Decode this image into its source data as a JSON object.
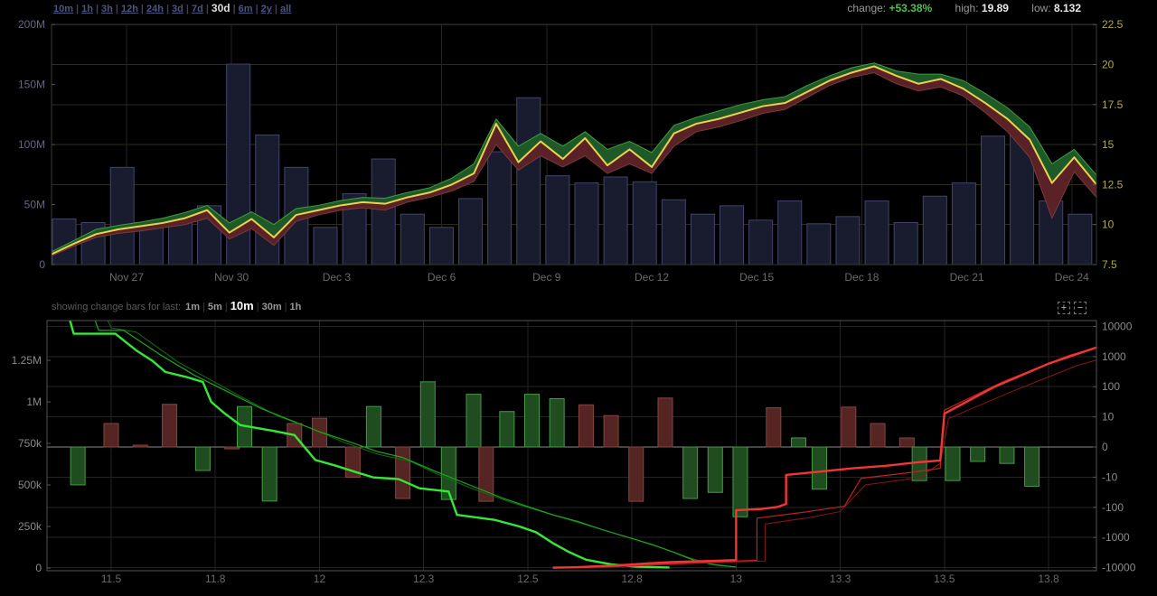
{
  "toolbar": {
    "ranges": [
      "10m",
      "1h",
      "3h",
      "12h",
      "24h",
      "3d",
      "7d",
      "30d",
      "6m",
      "2y",
      "all"
    ],
    "selected_range": "30d",
    "stats": {
      "change_label": "change:",
      "change_value": "+53.38%",
      "high_label": "high:",
      "high_value": "19.89",
      "low_label": "low:",
      "low_value": "8.132"
    }
  },
  "subbar": {
    "label": "showing change bars for last:",
    "options": [
      "1m",
      "5m",
      "10m",
      "30m",
      "1h"
    ],
    "selected": "10m",
    "zoom_in": "+",
    "zoom_out": "−"
  },
  "colors": {
    "background": "#000000",
    "price_line": "#e8d24e",
    "band_green": "#1e5a27",
    "band_green_edge": "#3f9c3f",
    "band_red": "#5a2126",
    "band_red_edge": "#7a3a3a",
    "volume_bar_fill": "#191b2f",
    "volume_bar_stroke": "#414569",
    "link": "#4d5480",
    "change_green": "#4ec04e",
    "axis_left_top": "#65657f",
    "axis_right_top": "#b2aa47",
    "axis_gray": "#8a8a8a",
    "date_label": "#6a6a6a",
    "grid_vertical": "#242424",
    "grid_horizontal_top": "#2e2d1a",
    "grid_bottom": "#232323",
    "zero_line": "#8a8a8a",
    "border_top_chart": "#383838",
    "border_bottom_chart": "#555555",
    "depth_bid": "#35e835",
    "depth_bid_thin": "#1fa51f",
    "depth_bid_thin2": "#0f7010",
    "depth_ask": "#f23535",
    "depth_ask_thin": "#c22020",
    "depth_ask_thin2": "#8a1616",
    "bar_bid_fill": "#1f4d20",
    "bar_bid_stroke": "#459a45",
    "bar_ask_fill": "#542522",
    "bar_ask_stroke": "#8a4440"
  },
  "chart_data": [
    {
      "type": "line",
      "title": "price with high-low band and daily volume bars",
      "x_tick_labels": [
        "Nov 27",
        "Nov 30",
        "Dec 3",
        "Dec 6",
        "Dec 9",
        "Dec 12",
        "Dec 15",
        "Dec 18",
        "Dec 21",
        "Dec 24"
      ],
      "left_axis": {
        "title": "volume",
        "tick_labels": [
          "0",
          "50M",
          "100M",
          "150M",
          "200M"
        ],
        "range": [
          0,
          200000000
        ]
      },
      "right_axis": {
        "title": "price",
        "tick_labels": [
          "7.5",
          "10",
          "12.5",
          "15",
          "17.5",
          "20",
          "22.5"
        ],
        "range": [
          7.5,
          22.5
        ]
      },
      "legend_position": "none",
      "grid": true,
      "stats": {
        "change_pct": 53.38,
        "high": 19.89,
        "low": 8.132
      },
      "volume_bars_millions": [
        38,
        35,
        81,
        34,
        36,
        49,
        167,
        108,
        81,
        31,
        59,
        88,
        42,
        31,
        55,
        94,
        139,
        74,
        68,
        73,
        69,
        54,
        42,
        49,
        37,
        53,
        34,
        40,
        53,
        35,
        57,
        68,
        107,
        109,
        53,
        42
      ],
      "price_line": [
        8.15,
        8.8,
        9.4,
        9.7,
        9.9,
        10.1,
        10.4,
        10.9,
        9.5,
        10.35,
        9.2,
        10.6,
        10.9,
        11.2,
        11.4,
        11.3,
        11.7,
        12.0,
        12.5,
        13.2,
        16.3,
        13.9,
        15.2,
        14.1,
        15.4,
        13.7,
        14.7,
        13.6,
        15.7,
        16.3,
        16.6,
        17.0,
        17.4,
        17.6,
        18.3,
        19.0,
        19.5,
        19.89,
        19.3,
        18.8,
        19.1,
        18.5,
        17.6,
        16.6,
        15.3,
        12.6,
        14.2,
        12.5
      ],
      "band_high": [
        8.3,
        9.0,
        9.7,
        9.95,
        10.15,
        10.4,
        10.75,
        11.2,
        10.1,
        10.8,
        10.0,
        11.0,
        11.2,
        11.5,
        11.7,
        11.65,
        12.0,
        12.3,
        12.9,
        13.8,
        16.6,
        14.9,
        15.7,
        14.9,
        15.8,
        14.7,
        15.2,
        14.5,
        16.2,
        16.7,
        17.1,
        17.5,
        17.8,
        18.0,
        18.7,
        19.3,
        19.8,
        20.1,
        19.6,
        19.4,
        19.4,
        19.0,
        18.2,
        17.3,
        16.1,
        13.8,
        14.7,
        13.1
      ],
      "band_low": [
        8.05,
        8.65,
        9.2,
        9.45,
        9.6,
        9.8,
        10.0,
        10.4,
        9.1,
        9.75,
        8.7,
        10.2,
        10.6,
        10.9,
        11.05,
        10.9,
        11.4,
        11.7,
        12.1,
        12.7,
        15.0,
        13.4,
        14.3,
        13.6,
        14.3,
        13.2,
        13.8,
        13.2,
        14.9,
        15.8,
        16.1,
        16.5,
        16.95,
        17.2,
        17.95,
        18.7,
        19.2,
        19.49,
        18.8,
        18.35,
        18.6,
        18.05,
        17.0,
        15.8,
        14.2,
        10.4,
        13.3,
        11.7
      ]
    },
    {
      "type": "bar",
      "title": "order book depth lines with bid/ask change bars",
      "x_tick_labels": [
        "11.5",
        "11.8",
        "12",
        "12.3",
        "12.5",
        "12.8",
        "13",
        "13.3",
        "13.5",
        "13.8"
      ],
      "x_tick_values": [
        11.5,
        11.75,
        12.0,
        12.25,
        12.5,
        12.75,
        13.0,
        13.25,
        13.5,
        13.75
      ],
      "x_range": [
        11.33,
        13.86
      ],
      "left_axis": {
        "title": "cumulative depth",
        "tick_labels": [
          "0",
          "250k",
          "500k",
          "750k",
          "1M",
          "1.25M"
        ],
        "range": [
          0,
          1500000
        ]
      },
      "right_axis": {
        "title": "change",
        "scale": "symlog",
        "tick_labels": [
          "10000",
          "1000",
          "100",
          "10",
          "0",
          "-10",
          "-100",
          "-1000",
          "-10000"
        ],
        "tick_values": [
          10000,
          1000,
          100,
          10,
          0,
          -10,
          -100,
          -1000,
          -10000
        ]
      },
      "grid": true,
      "change_bars": [
        {
          "price": 11.42,
          "value": -18,
          "side": "bid"
        },
        {
          "price": 11.5,
          "value": 6,
          "side": "ask"
        },
        {
          "price": 11.57,
          "value": 1,
          "side": "ask"
        },
        {
          "price": 11.64,
          "value": 26,
          "side": "ask"
        },
        {
          "price": 11.72,
          "value": -6,
          "side": "bid"
        },
        {
          "price": 11.79,
          "value": -1,
          "side": "ask"
        },
        {
          "price": 11.82,
          "value": 22,
          "side": "bid"
        },
        {
          "price": 11.88,
          "value": -62,
          "side": "bid"
        },
        {
          "price": 11.94,
          "value": 6,
          "side": "ask"
        },
        {
          "price": 12.0,
          "value": 9,
          "side": "ask"
        },
        {
          "price": 12.08,
          "value": -10,
          "side": "ask"
        },
        {
          "price": 12.13,
          "value": 22,
          "side": "bid"
        },
        {
          "price": 12.2,
          "value": -51,
          "side": "ask"
        },
        {
          "price": 12.26,
          "value": 145,
          "side": "bid"
        },
        {
          "price": 12.31,
          "value": -55,
          "side": "bid"
        },
        {
          "price": 12.37,
          "value": 56,
          "side": "bid"
        },
        {
          "price": 12.4,
          "value": -63,
          "side": "ask"
        },
        {
          "price": 12.45,
          "value": 15,
          "side": "bid"
        },
        {
          "price": 12.51,
          "value": 56,
          "side": "bid"
        },
        {
          "price": 12.57,
          "value": 40,
          "side": "bid"
        },
        {
          "price": 12.64,
          "value": 25,
          "side": "ask"
        },
        {
          "price": 12.7,
          "value": 11,
          "side": "ask"
        },
        {
          "price": 12.76,
          "value": -63,
          "side": "ask"
        },
        {
          "price": 12.83,
          "value": 42,
          "side": "ask"
        },
        {
          "price": 12.89,
          "value": -51,
          "side": "bid"
        },
        {
          "price": 12.95,
          "value": -32,
          "side": "bid"
        },
        {
          "price": 13.01,
          "value": -205,
          "side": "bid"
        },
        {
          "price": 13.09,
          "value": 20,
          "side": "ask"
        },
        {
          "price": 13.15,
          "value": 2,
          "side": "bid"
        },
        {
          "price": 13.2,
          "value": -25,
          "side": "bid"
        },
        {
          "price": 13.27,
          "value": 21,
          "side": "ask"
        },
        {
          "price": 13.34,
          "value": 6,
          "side": "ask"
        },
        {
          "price": 13.41,
          "value": 2,
          "side": "ask"
        },
        {
          "price": 13.44,
          "value": -13,
          "side": "bid"
        },
        {
          "price": 13.52,
          "value": -13,
          "side": "bid"
        },
        {
          "price": 13.58,
          "value": -3,
          "side": "bid"
        },
        {
          "price": 13.65,
          "value": -3.5,
          "side": "bid"
        },
        {
          "price": 13.71,
          "value": -20,
          "side": "bid"
        }
      ],
      "depth_lines": {
        "bid_main_k": [
          [
            11.4,
            1500
          ],
          [
            11.41,
            1410
          ],
          [
            11.51,
            1410
          ],
          [
            11.56,
            1310
          ],
          [
            11.6,
            1245
          ],
          [
            11.63,
            1180
          ],
          [
            11.68,
            1150
          ],
          [
            11.72,
            1120
          ],
          [
            11.74,
            1000
          ],
          [
            11.77,
            935
          ],
          [
            11.81,
            860
          ],
          [
            11.89,
            825
          ],
          [
            11.94,
            800
          ],
          [
            11.99,
            650
          ],
          [
            12.04,
            615
          ],
          [
            12.09,
            575
          ],
          [
            12.13,
            545
          ],
          [
            12.19,
            535
          ],
          [
            12.24,
            480
          ],
          [
            12.31,
            460
          ],
          [
            12.33,
            320
          ],
          [
            12.42,
            290
          ],
          [
            12.48,
            250
          ],
          [
            12.52,
            215
          ],
          [
            12.56,
            150
          ],
          [
            12.6,
            95
          ],
          [
            12.64,
            50
          ],
          [
            12.7,
            22
          ],
          [
            12.76,
            8
          ],
          [
            12.84,
            3
          ]
        ],
        "bid_snapshot1_k": [
          [
            11.46,
            1500
          ],
          [
            11.47,
            1430
          ],
          [
            11.53,
            1430
          ],
          [
            11.62,
            1280
          ],
          [
            11.7,
            1160
          ],
          [
            11.78,
            1060
          ],
          [
            11.86,
            960
          ],
          [
            11.94,
            880
          ],
          [
            12.0,
            820
          ],
          [
            12.06,
            770
          ],
          [
            12.14,
            700
          ],
          [
            12.2,
            665
          ],
          [
            12.28,
            580
          ],
          [
            12.36,
            500
          ],
          [
            12.44,
            420
          ],
          [
            12.5,
            370
          ],
          [
            12.56,
            320
          ],
          [
            12.62,
            280
          ],
          [
            12.68,
            230
          ],
          [
            12.74,
            185
          ],
          [
            12.8,
            140
          ],
          [
            12.85,
            95
          ],
          [
            12.9,
            45
          ],
          [
            12.95,
            18
          ],
          [
            13.0,
            6
          ]
        ],
        "bid_snapshot2_k": [
          [
            11.49,
            1500
          ],
          [
            11.5,
            1445
          ],
          [
            11.56,
            1420
          ],
          [
            11.66,
            1240
          ],
          [
            11.74,
            1130
          ],
          [
            11.82,
            1020
          ],
          [
            11.9,
            915
          ],
          [
            11.98,
            840
          ],
          [
            12.06,
            755
          ],
          [
            12.14,
            685
          ],
          [
            12.22,
            640
          ],
          [
            12.3,
            545
          ],
          [
            12.38,
            465
          ],
          [
            12.46,
            395
          ],
          [
            12.54,
            335
          ],
          [
            12.6,
            290
          ],
          [
            12.66,
            245
          ],
          [
            12.72,
            200
          ],
          [
            12.78,
            155
          ],
          [
            12.84,
            105
          ],
          [
            12.89,
            60
          ],
          [
            12.94,
            25
          ],
          [
            12.99,
            8
          ]
        ],
        "ask_main_k": [
          [
            12.56,
            2
          ],
          [
            12.62,
            5
          ],
          [
            12.68,
            12
          ],
          [
            12.73,
            18
          ],
          [
            12.79,
            28
          ],
          [
            12.85,
            36
          ],
          [
            12.9,
            40
          ],
          [
            12.97,
            45
          ],
          [
            13.0,
            48
          ],
          [
            13.0,
            348
          ],
          [
            13.06,
            355
          ],
          [
            13.1,
            368
          ],
          [
            13.12,
            385
          ],
          [
            13.12,
            560
          ],
          [
            13.2,
            580
          ],
          [
            13.28,
            600
          ],
          [
            13.36,
            615
          ],
          [
            13.43,
            635
          ],
          [
            13.49,
            647
          ],
          [
            13.5,
            929
          ],
          [
            13.62,
            1090
          ],
          [
            13.75,
            1230
          ],
          [
            13.88,
            1340
          ],
          [
            14.02,
            1430
          ],
          [
            14.09,
            1450
          ]
        ],
        "ask_snapshot1_k": [
          [
            12.6,
            1
          ],
          [
            12.7,
            7
          ],
          [
            12.8,
            20
          ],
          [
            12.9,
            32
          ],
          [
            13.0,
            42
          ],
          [
            13.05,
            46
          ],
          [
            13.05,
            300
          ],
          [
            13.16,
            335
          ],
          [
            13.26,
            372
          ],
          [
            13.3,
            540
          ],
          [
            13.41,
            572
          ],
          [
            13.49,
            600
          ],
          [
            13.5,
            950
          ],
          [
            13.64,
            1120
          ],
          [
            13.8,
            1280
          ],
          [
            14.0,
            1420
          ],
          [
            14.09,
            1460
          ]
        ],
        "ask_snapshot2_k": [
          [
            12.58,
            1
          ],
          [
            12.74,
            10
          ],
          [
            12.88,
            26
          ],
          [
            13.02,
            38
          ],
          [
            13.07,
            42
          ],
          [
            13.07,
            265
          ],
          [
            13.18,
            305
          ],
          [
            13.25,
            340
          ],
          [
            13.31,
            500
          ],
          [
            13.44,
            545
          ],
          [
            13.49,
            630
          ],
          [
            13.51,
            900
          ],
          [
            13.66,
            1060
          ],
          [
            13.82,
            1220
          ],
          [
            14.02,
            1360
          ],
          [
            14.09,
            1400
          ]
        ]
      }
    }
  ]
}
